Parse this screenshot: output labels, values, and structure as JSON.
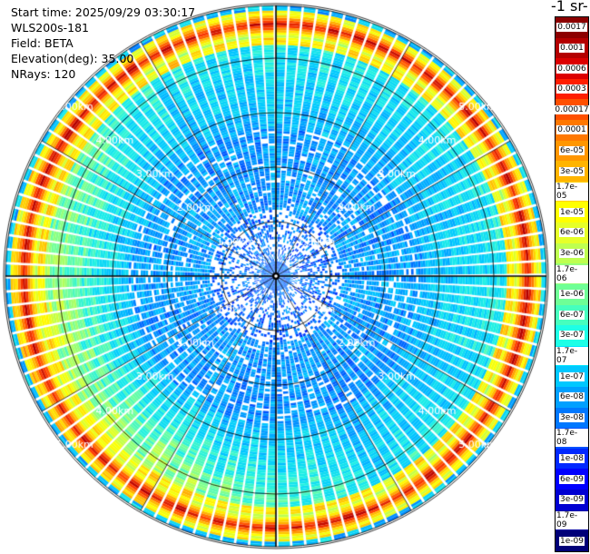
{
  "header": {
    "start_time": "Start time: 2025/09/29 03:30:17",
    "instrument": "WLS200s-181",
    "field": "Field: BETA",
    "elevation": "Elevation(deg): 35.00",
    "nrays": "NRays: 120"
  },
  "colorbar": {
    "title": "-1 sr-",
    "labels": [
      "0.0017",
      "0.001",
      "0.0006",
      "0.0003",
      "0.00017",
      "0.0001",
      "6e-05",
      "3e-05",
      "1.7e-05",
      "1e-05",
      "6e-06",
      "3e-06",
      "1.7e-06",
      "1e-06",
      "6e-07",
      "3e-07",
      "1.7e-07",
      "1e-07",
      "6e-08",
      "3e-08",
      "1.7e-08",
      "1e-08",
      "6e-09",
      "3e-09",
      "1.7e-09",
      "1e-09"
    ],
    "colors": [
      "#8c0000",
      "#b40000",
      "#dc0000",
      "#ff1e00",
      "#ff5000",
      "#ff7800",
      "#ff9600",
      "#ffb400",
      "#ffd200",
      "#ffff00",
      "#e6ff28",
      "#beff50",
      "#96ff78",
      "#6eff96",
      "#46ffbe",
      "#1effe6",
      "#00e6ff",
      "#00c8ff",
      "#00a0ff",
      "#0078ff",
      "#0050ff",
      "#0028ff",
      "#0000ff",
      "#0000d2",
      "#0000a0",
      "#000078"
    ]
  },
  "chart_data": {
    "type": "ppi",
    "rays": 120,
    "range_rings_km": [
      1,
      2,
      3,
      4,
      5
    ],
    "range_labels": [
      "1.00km",
      "2.00km",
      "3.00km",
      "4.00km",
      "5.00km"
    ],
    "ring_label_positions": [
      "upper-left",
      "upper-right",
      "lower-left",
      "lower-right"
    ],
    "grid": true
  }
}
